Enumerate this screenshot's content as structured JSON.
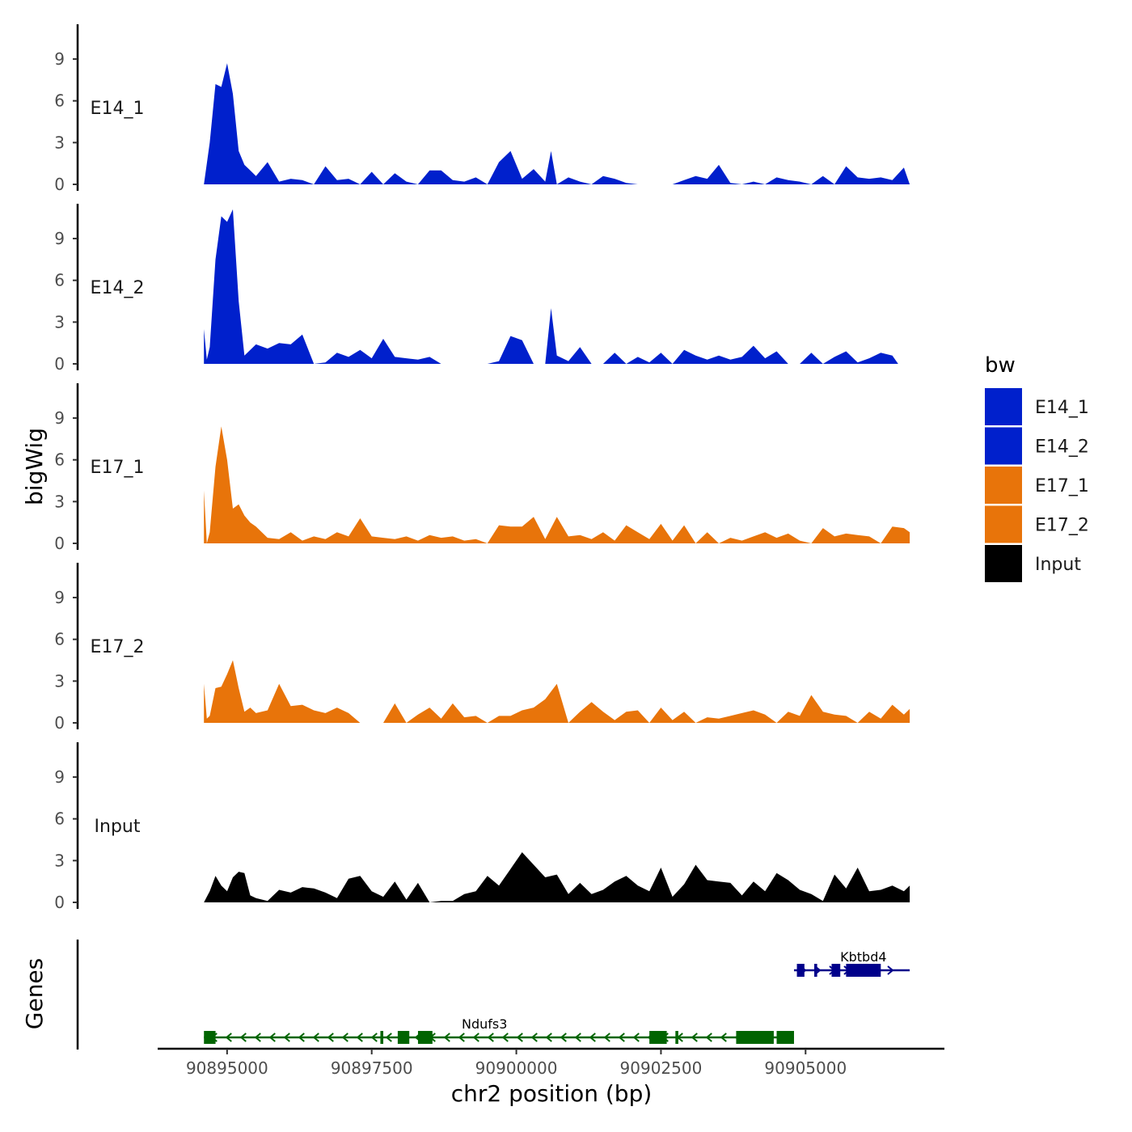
{
  "chart_data": {
    "type": "area",
    "chromosome": "chr2",
    "xlabel": "chr2 position (bp)",
    "ylabel": "bigWig",
    "genes_label": "Genes",
    "xlim": [
      90893800,
      90907400
    ],
    "region": [
      90894600,
      90906800
    ],
    "ylim": [
      0,
      11.5
    ],
    "y_ticks": [
      0,
      3,
      6,
      9
    ],
    "x_ticks": [
      90895000,
      90897500,
      90900000,
      90902500,
      90905000
    ],
    "x_tick_labels": [
      "90895000",
      "90897500",
      "90900000",
      "90902500",
      "90905000"
    ],
    "legend": {
      "title": "bw",
      "entries": [
        {
          "label": "E14_1",
          "color": "#0020CC"
        },
        {
          "label": "E14_2",
          "color": "#0020CC"
        },
        {
          "label": "E17_1",
          "color": "#E8740A"
        },
        {
          "label": "E17_2",
          "color": "#E8740A"
        },
        {
          "label": "Input",
          "color": "#000000"
        }
      ]
    },
    "tracks": [
      {
        "name": "E14_1",
        "color": "#0020CC",
        "x": [
          90894600,
          90894700,
          90894800,
          90894900,
          90895000,
          90895100,
          90895200,
          90895300,
          90895400,
          90895500,
          90895700,
          90895900,
          90896100,
          90896300,
          90896500,
          90896700,
          90896900,
          90897100,
          90897300,
          90897500,
          90897700,
          90897900,
          90898100,
          90898300,
          90898500,
          90898700,
          90898900,
          90899100,
          90899300,
          90899500,
          90899700,
          90899900,
          90900100,
          90900300,
          90900500,
          90900600,
          90900700,
          90900900,
          90901100,
          90901300,
          90901500,
          90901700,
          90901900,
          90902100,
          90902300,
          90902500,
          90902700,
          90902900,
          90903100,
          90903300,
          90903500,
          90903700,
          90903900,
          90904100,
          90904300,
          90904500,
          90904700,
          90904900,
          90905100,
          90905300,
          90905500,
          90905700,
          90905900,
          90906100,
          90906300,
          90906500,
          90906700,
          90906800
        ],
        "y": [
          0,
          3,
          7.2,
          7,
          8.7,
          6.5,
          2.4,
          1.4,
          1,
          0.6,
          1.6,
          0.2,
          0.4,
          0.3,
          0,
          1.3,
          0.3,
          0.4,
          0,
          0.9,
          0,
          0.8,
          0.2,
          0,
          1,
          1,
          0.3,
          0.2,
          0.5,
          0,
          1.6,
          2.4,
          0.4,
          1.1,
          0.2,
          2.4,
          0,
          0.5,
          0.2,
          0,
          0.6,
          0.4,
          0.1,
          0,
          0,
          0,
          0,
          0.3,
          0.6,
          0.4,
          1.4,
          0.1,
          0,
          0.2,
          0,
          0.5,
          0.3,
          0.2,
          0,
          0.6,
          0,
          1.3,
          0.5,
          0.4,
          0.5,
          0.3,
          1.2,
          0
        ]
      },
      {
        "name": "E14_2",
        "color": "#0020CC",
        "x": [
          90894600,
          90894650,
          90894700,
          90894800,
          90894900,
          90895000,
          90895100,
          90895200,
          90895300,
          90895500,
          90895700,
          90895900,
          90896100,
          90896300,
          90896500,
          90896700,
          90896900,
          90897100,
          90897300,
          90897500,
          90897700,
          90897900,
          90898100,
          90898300,
          90898500,
          90898700,
          90898900,
          90899100,
          90899300,
          90899500,
          90899700,
          90899900,
          90900100,
          90900300,
          90900500,
          90900600,
          90900700,
          90900900,
          90901100,
          90901300,
          90901500,
          90901700,
          90901900,
          90902100,
          90902300,
          90902500,
          90902700,
          90902900,
          90903100,
          90903300,
          90903500,
          90903700,
          90903900,
          90904100,
          90904300,
          90904500,
          90904700,
          90904900,
          90905100,
          90905300,
          90905500,
          90905700,
          90905900,
          90906100,
          90906300,
          90906500,
          90906600
        ],
        "y": [
          2.5,
          0.3,
          1.2,
          7.5,
          10.6,
          10.2,
          11.1,
          4.5,
          0.6,
          1.4,
          1.1,
          1.5,
          1.4,
          2.1,
          0,
          0.1,
          0.8,
          0.5,
          1,
          0.4,
          1.8,
          0.5,
          0.4,
          0.3,
          0.5,
          0,
          0,
          0,
          0,
          0,
          0.2,
          2,
          1.7,
          0,
          0,
          4,
          0.6,
          0.2,
          1.2,
          0,
          0,
          0.8,
          0,
          0.5,
          0.1,
          0.8,
          0,
          1,
          0.6,
          0.3,
          0.6,
          0.3,
          0.5,
          1.3,
          0.4,
          0.9,
          0,
          0,
          0.8,
          0,
          0.5,
          0.9,
          0.1,
          0.4,
          0.8,
          0.6,
          0
        ]
      },
      {
        "name": "E17_1",
        "color": "#E8740A",
        "x": [
          90894600,
          90894650,
          90894700,
          90894800,
          90894900,
          90895000,
          90895100,
          90895200,
          90895300,
          90895400,
          90895500,
          90895700,
          90895900,
          90896100,
          90896300,
          90896500,
          90896700,
          90896900,
          90897100,
          90897300,
          90897500,
          90897700,
          90897900,
          90898100,
          90898300,
          90898500,
          90898700,
          90898900,
          90899100,
          90899300,
          90899500,
          90899700,
          90899900,
          90900100,
          90900300,
          90900500,
          90900700,
          90900900,
          90901100,
          90901300,
          90901500,
          90901700,
          90901900,
          90902100,
          90902300,
          90902500,
          90902700,
          90902900,
          90903100,
          90903300,
          90903500,
          90903700,
          90903900,
          90904100,
          90904300,
          90904500,
          90904700,
          90904900,
          90905100,
          90905300,
          90905500,
          90905700,
          90905900,
          90906100,
          90906300,
          90906500,
          90906700,
          90906800
        ],
        "y": [
          3.8,
          0,
          0.8,
          5.5,
          8.4,
          6,
          2.5,
          2.8,
          2,
          1.5,
          1.2,
          0.4,
          0.3,
          0.8,
          0.2,
          0.5,
          0.3,
          0.8,
          0.5,
          1.8,
          0.5,
          0.4,
          0.3,
          0.5,
          0.2,
          0.6,
          0.4,
          0.5,
          0.2,
          0.3,
          0,
          1.3,
          1.2,
          1.2,
          1.9,
          0.3,
          1.9,
          0.5,
          0.6,
          0.3,
          0.8,
          0.2,
          1.3,
          0.8,
          0.3,
          1.4,
          0.2,
          1.3,
          0,
          0.8,
          0,
          0.4,
          0.2,
          0.5,
          0.8,
          0.4,
          0.7,
          0.2,
          0,
          1.1,
          0.5,
          0.7,
          0.6,
          0.5,
          0,
          1.2,
          1.1,
          0.8
        ]
      },
      {
        "name": "E17_2",
        "color": "#E8740A",
        "x": [
          90894600,
          90894650,
          90894700,
          90894800,
          90894900,
          90895000,
          90895100,
          90895200,
          90895300,
          90895400,
          90895500,
          90895700,
          90895900,
          90896100,
          90896300,
          90896500,
          90896700,
          90896900,
          90897100,
          90897300,
          90897500,
          90897700,
          90897900,
          90898100,
          90898300,
          90898500,
          90898700,
          90898900,
          90899100,
          90899300,
          90899500,
          90899700,
          90899900,
          90900100,
          90900300,
          90900500,
          90900700,
          90900900,
          90901100,
          90901300,
          90901500,
          90901700,
          90901900,
          90902100,
          90902300,
          90902500,
          90902700,
          90902900,
          90903100,
          90903300,
          90903500,
          90903700,
          90903900,
          90904100,
          90904300,
          90904500,
          90904700,
          90904900,
          90905100,
          90905300,
          90905500,
          90905700,
          90905900,
          90906100,
          90906300,
          90906500,
          90906700,
          90906800
        ],
        "y": [
          2.8,
          0.3,
          0.5,
          2.5,
          2.6,
          3.5,
          4.5,
          2.5,
          0.8,
          1.1,
          0.7,
          0.9,
          2.8,
          1.2,
          1.3,
          0.9,
          0.7,
          1.1,
          0.7,
          0,
          0,
          0,
          1.4,
          0,
          0.6,
          1.1,
          0.3,
          1.4,
          0.4,
          0.5,
          0,
          0.5,
          0.5,
          0.9,
          1.1,
          1.7,
          2.8,
          0,
          0.8,
          1.5,
          0.8,
          0.2,
          0.8,
          0.9,
          0,
          1.1,
          0.2,
          0.8,
          0,
          0.4,
          0.3,
          0.5,
          0.7,
          0.9,
          0.6,
          0,
          0.8,
          0.5,
          2,
          0.8,
          0.6,
          0.5,
          0,
          0.8,
          0.3,
          1.3,
          0.6,
          1
        ]
      },
      {
        "name": "Input",
        "color": "#000000",
        "x": [
          90894600,
          90894700,
          90894800,
          90894900,
          90895000,
          90895100,
          90895200,
          90895300,
          90895400,
          90895500,
          90895700,
          90895900,
          90896100,
          90896300,
          90896500,
          90896700,
          90896900,
          90897100,
          90897300,
          90897500,
          90897700,
          90897900,
          90898100,
          90898300,
          90898500,
          90898700,
          90898900,
          90899100,
          90899300,
          90899500,
          90899700,
          90899900,
          90900100,
          90900300,
          90900500,
          90900700,
          90900900,
          90901100,
          90901300,
          90901500,
          90901700,
          90901900,
          90902100,
          90902300,
          90902500,
          90902700,
          90902900,
          90903100,
          90903300,
          90903500,
          90903700,
          90903900,
          90904100,
          90904300,
          90904500,
          90904700,
          90904900,
          90905100,
          90905300,
          90905500,
          90905700,
          90905900,
          90906100,
          90906300,
          90906500,
          90906700,
          90906800
        ],
        "y": [
          0,
          0.8,
          1.9,
          1.2,
          0.8,
          1.8,
          2.2,
          2.1,
          0.5,
          0.3,
          0.1,
          0.9,
          0.7,
          1.1,
          1,
          0.7,
          0.3,
          1.7,
          1.9,
          0.8,
          0.4,
          1.5,
          0.2,
          1.4,
          0,
          0.1,
          0.1,
          0.6,
          0.8,
          1.9,
          1.2,
          2.4,
          3.6,
          2.7,
          1.8,
          2,
          0.6,
          1.4,
          0.6,
          0.9,
          1.5,
          1.9,
          1.2,
          0.8,
          2.5,
          0.4,
          1.3,
          2.7,
          1.6,
          1.5,
          1.4,
          0.5,
          1.5,
          0.8,
          2.1,
          1.6,
          0.9,
          0.6,
          0.1,
          2,
          1,
          2.5,
          0.8,
          0.9,
          1.2,
          0.8,
          1.2
        ]
      }
    ],
    "genes": [
      {
        "name": "Kbtbd4",
        "strand": "+",
        "color": "#00008B",
        "row": 1,
        "start": 90904800,
        "end": 90906800,
        "exons": [
          [
            90904850,
            90904980
          ],
          [
            90905150,
            90905200
          ],
          [
            90905450,
            90905600
          ],
          [
            90905700,
            90906300
          ]
        ]
      },
      {
        "name": "Ndufs3",
        "strand": "-",
        "color": "#006400",
        "row": 2,
        "start": 90894600,
        "end": 90904800,
        "exons": [
          [
            90894600,
            90894800
          ],
          [
            90897650,
            90897700
          ],
          [
            90897950,
            90898150
          ],
          [
            90898300,
            90898550
          ],
          [
            90902300,
            90902600
          ],
          [
            90902750,
            90902800
          ],
          [
            90903800,
            90904450
          ],
          [
            90904500,
            90904800
          ]
        ]
      }
    ]
  }
}
